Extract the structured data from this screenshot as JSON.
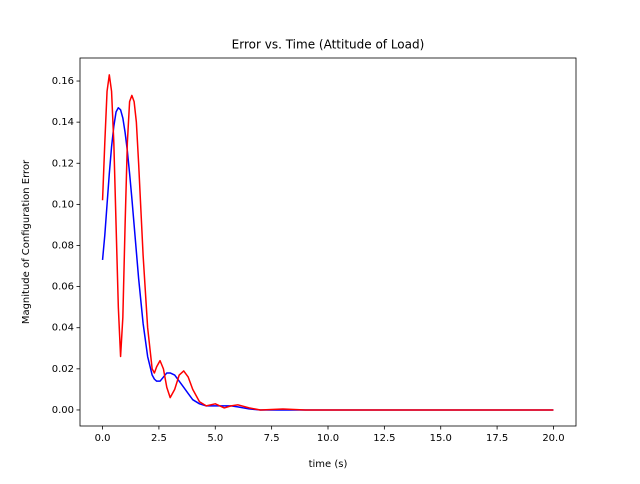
{
  "chart_data": {
    "type": "line",
    "title": "Error vs. Time (Attitude of Load)",
    "xlabel": "time (s)",
    "ylabel": "Magnitude of Configuration Error",
    "x": [
      0,
      0.1,
      0.2,
      0.3,
      0.4,
      0.5,
      0.6,
      0.7,
      0.8,
      0.9,
      1.0,
      1.1,
      1.2,
      1.3,
      1.4,
      1.5,
      1.6,
      1.8,
      2.0,
      2.2,
      2.3,
      2.4,
      2.55,
      2.7,
      2.85,
      3.0,
      3.2,
      3.4,
      3.6,
      3.8,
      4.0,
      4.3,
      4.6,
      5.0,
      5.4,
      5.7,
      6.0,
      6.5,
      7.0,
      8.0,
      9.0,
      10,
      12,
      14,
      16,
      18,
      20
    ],
    "series": [
      {
        "color": "#0000ff",
        "values": [
          0.073,
          0.085,
          0.1,
          0.115,
          0.128,
          0.138,
          0.145,
          0.147,
          0.146,
          0.142,
          0.135,
          0.126,
          0.115,
          0.103,
          0.09,
          0.077,
          0.064,
          0.042,
          0.026,
          0.017,
          0.015,
          0.014,
          0.014,
          0.016,
          0.018,
          0.018,
          0.017,
          0.014,
          0.011,
          0.008,
          0.005,
          0.003,
          0.002,
          0.002,
          0.002,
          0.002,
          0.0015,
          0.0005,
          0,
          0,
          0,
          0,
          0,
          0,
          0,
          0,
          0
        ]
      },
      {
        "color": "#ff0000",
        "values": [
          0.102,
          0.13,
          0.155,
          0.163,
          0.155,
          0.13,
          0.09,
          0.05,
          0.026,
          0.045,
          0.09,
          0.13,
          0.15,
          0.153,
          0.15,
          0.14,
          0.12,
          0.075,
          0.04,
          0.02,
          0.018,
          0.021,
          0.024,
          0.02,
          0.011,
          0.006,
          0.01,
          0.017,
          0.019,
          0.016,
          0.01,
          0.004,
          0.002,
          0.003,
          0.001,
          0.002,
          0.0025,
          0.001,
          0,
          0.0005,
          0,
          0,
          0,
          0,
          0,
          0,
          0
        ]
      }
    ],
    "xlim": [
      -1.0,
      21.0
    ],
    "ylim": [
      -0.0078,
      0.1712
    ],
    "xticks": [
      {
        "value": 0,
        "label": "0.0"
      },
      {
        "value": 2.5,
        "label": "2.5"
      },
      {
        "value": 5,
        "label": "5.0"
      },
      {
        "value": 7.5,
        "label": "7.5"
      },
      {
        "value": 10,
        "label": "10.0"
      },
      {
        "value": 12.5,
        "label": "12.5"
      },
      {
        "value": 15,
        "label": "15.0"
      },
      {
        "value": 17.5,
        "label": "17.5"
      },
      {
        "value": 20,
        "label": "20.0"
      }
    ],
    "yticks": [
      {
        "value": 0,
        "label": "0.00"
      },
      {
        "value": 0.02,
        "label": "0.02"
      },
      {
        "value": 0.04,
        "label": "0.04"
      },
      {
        "value": 0.06,
        "label": "0.06"
      },
      {
        "value": 0.08,
        "label": "0.08"
      },
      {
        "value": 0.1,
        "label": "0.10"
      },
      {
        "value": 0.12,
        "label": "0.12"
      },
      {
        "value": 0.14,
        "label": "0.14"
      },
      {
        "value": 0.16,
        "label": "0.16"
      }
    ]
  }
}
